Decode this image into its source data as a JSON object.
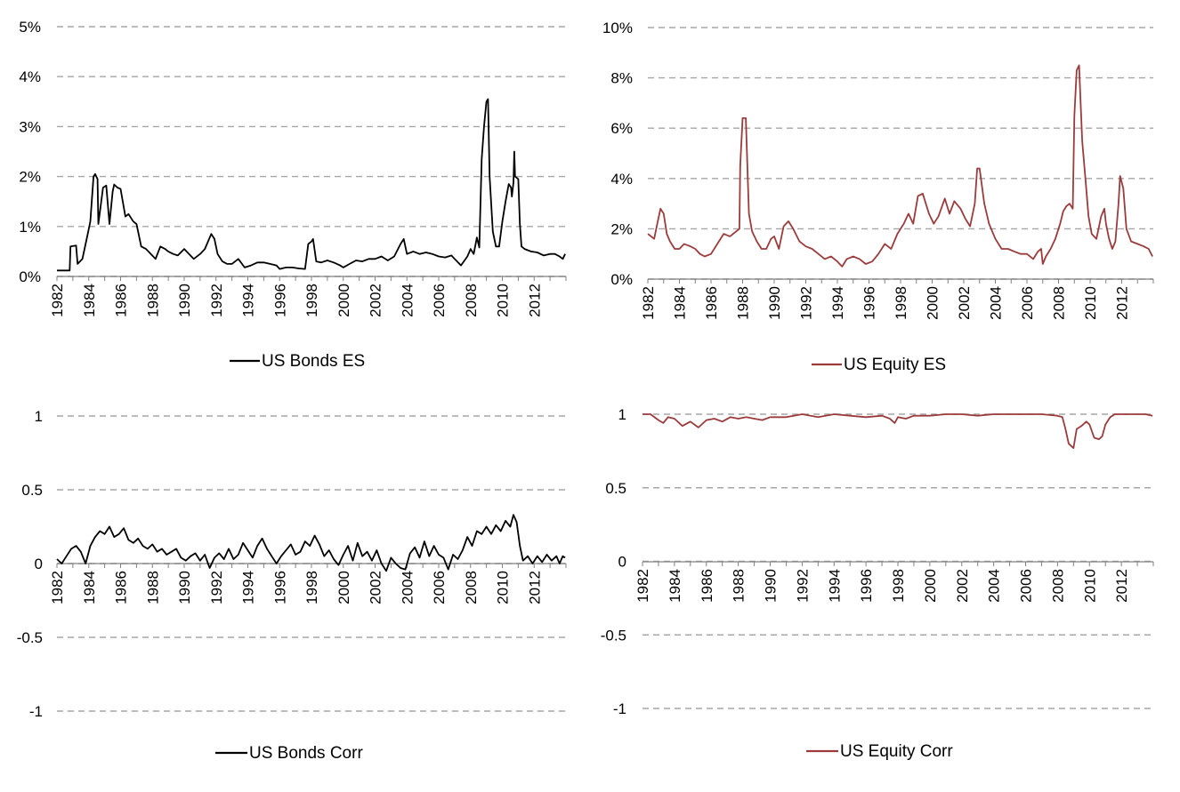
{
  "chart_data": [
    {
      "id": "bonds-es",
      "type": "line",
      "legend": "US Bonds ES",
      "color": "#000000",
      "ylim": [
        0,
        0.05
      ],
      "y_ticks": [
        0,
        0.01,
        0.02,
        0.03,
        0.04,
        0.05
      ],
      "y_tick_labels": [
        "0%",
        "1%",
        "2%",
        "3%",
        "4%",
        "5%"
      ],
      "xlim": [
        1982,
        2014
      ],
      "x_ticks": [
        1982,
        1984,
        1986,
        1988,
        1990,
        1992,
        1994,
        1996,
        1998,
        2000,
        2002,
        2004,
        2006,
        2008,
        2010,
        2012
      ],
      "x_tick_labels": [
        "1982",
        "1984",
        "1986",
        "1988",
        "1990",
        "1992",
        "1994",
        "1996",
        "1998",
        "2000",
        "2002",
        "2004",
        "2006",
        "2008",
        "2010",
        "2012"
      ],
      "grid": true,
      "series": [
        {
          "name": "US Bonds ES",
          "x": [
            1982.0,
            1982.8,
            1982.85,
            1983.2,
            1983.3,
            1983.6,
            1983.9,
            1984.1,
            1984.3,
            1984.4,
            1984.55,
            1984.6,
            1984.9,
            1985.1,
            1985.3,
            1985.5,
            1985.6,
            1985.8,
            1986.0,
            1986.3,
            1986.5,
            1986.8,
            1987.0,
            1987.3,
            1987.6,
            1987.9,
            1988.2,
            1988.5,
            1988.8,
            1989.0,
            1989.3,
            1989.6,
            1990.0,
            1990.3,
            1990.6,
            1991.0,
            1991.3,
            1991.7,
            1991.9,
            1992.1,
            1992.4,
            1992.7,
            1993.0,
            1993.4,
            1993.8,
            1994.2,
            1994.6,
            1995.0,
            1995.4,
            1995.8,
            1996.0,
            1996.4,
            1996.8,
            1997.2,
            1997.6,
            1997.8,
            1998.0,
            1998.1,
            1998.3,
            1998.6,
            1999.0,
            1999.4,
            1999.8,
            2000.0,
            2000.4,
            2000.8,
            2001.2,
            2001.6,
            2002.0,
            2002.4,
            2002.8,
            2003.2,
            2003.6,
            2003.8,
            2004.0,
            2004.4,
            2004.8,
            2005.2,
            2005.6,
            2006.0,
            2006.4,
            2006.8,
            2007.0,
            2007.4,
            2007.8,
            2008.0,
            2008.2,
            2008.4,
            2008.55,
            2008.7,
            2008.85,
            2009.0,
            2009.1,
            2009.2,
            2009.4,
            2009.6,
            2009.8,
            2010.0,
            2010.2,
            2010.4,
            2010.55,
            2010.6,
            2010.7,
            2010.75,
            2010.8,
            2011.0,
            2011.1,
            2011.2,
            2011.4,
            2011.8,
            2012.2,
            2012.6,
            2013.0,
            2013.3,
            2013.6,
            2013.8,
            2013.95
          ],
          "y": [
            0.0012,
            0.0012,
            0.006,
            0.0062,
            0.0025,
            0.0035,
            0.008,
            0.011,
            0.02,
            0.0205,
            0.0195,
            0.0105,
            0.0178,
            0.0182,
            0.0105,
            0.017,
            0.0184,
            0.0178,
            0.0175,
            0.012,
            0.0125,
            0.011,
            0.0105,
            0.006,
            0.0055,
            0.0045,
            0.0035,
            0.006,
            0.0055,
            0.005,
            0.0045,
            0.0042,
            0.0055,
            0.0045,
            0.0035,
            0.0045,
            0.0055,
            0.0085,
            0.0075,
            0.0045,
            0.003,
            0.0025,
            0.0025,
            0.0035,
            0.0018,
            0.0022,
            0.0028,
            0.0028,
            0.0025,
            0.0022,
            0.0015,
            0.0018,
            0.0018,
            0.0016,
            0.0015,
            0.0065,
            0.007,
            0.0075,
            0.003,
            0.0028,
            0.0032,
            0.0028,
            0.0022,
            0.0018,
            0.0025,
            0.0032,
            0.003,
            0.0035,
            0.0035,
            0.004,
            0.0032,
            0.004,
            0.0065,
            0.0075,
            0.0045,
            0.005,
            0.0045,
            0.0048,
            0.0045,
            0.004,
            0.0038,
            0.0042,
            0.0035,
            0.0022,
            0.004,
            0.0055,
            0.0045,
            0.0078,
            0.0058,
            0.0235,
            0.03,
            0.035,
            0.0355,
            0.02,
            0.009,
            0.006,
            0.006,
            0.011,
            0.015,
            0.0185,
            0.0178,
            0.016,
            0.0188,
            0.025,
            0.02,
            0.0195,
            0.0105,
            0.006,
            0.0055,
            0.005,
            0.0048,
            0.0042,
            0.0045,
            0.0045,
            0.004,
            0.0035,
            0.0045
          ]
        }
      ]
    },
    {
      "id": "equity-es",
      "type": "line",
      "legend": "US Equity ES",
      "color": "#9b3b3b",
      "ylim": [
        0,
        0.1
      ],
      "y_ticks": [
        0,
        0.02,
        0.04,
        0.06,
        0.08,
        0.1
      ],
      "y_tick_labels": [
        "0%",
        "2%",
        "4%",
        "6%",
        "8%",
        "10%"
      ],
      "xlim": [
        1982,
        2014
      ],
      "x_ticks": [
        1982,
        1984,
        1986,
        1988,
        1990,
        1992,
        1994,
        1996,
        1998,
        2000,
        2002,
        2004,
        2006,
        2008,
        2010,
        2012
      ],
      "x_tick_labels": [
        "1982",
        "1984",
        "1986",
        "1988",
        "1990",
        "1992",
        "1994",
        "1996",
        "1998",
        "2000",
        "2002",
        "2004",
        "2006",
        "2008",
        "2010",
        "2012"
      ],
      "grid": true,
      "series": [
        {
          "name": "US Equity ES",
          "x": [
            1982.0,
            1982.4,
            1982.6,
            1982.8,
            1983.0,
            1983.2,
            1983.4,
            1983.7,
            1984.0,
            1984.3,
            1984.7,
            1985.0,
            1985.3,
            1985.6,
            1986.0,
            1986.4,
            1986.8,
            1987.2,
            1987.6,
            1987.8,
            1987.85,
            1988.0,
            1988.2,
            1988.4,
            1988.6,
            1988.9,
            1989.2,
            1989.5,
            1989.8,
            1990.0,
            1990.3,
            1990.6,
            1990.9,
            1991.2,
            1991.6,
            1992.0,
            1992.4,
            1992.8,
            1993.2,
            1993.6,
            1994.0,
            1994.3,
            1994.6,
            1995.0,
            1995.4,
            1995.8,
            1996.2,
            1996.6,
            1997.0,
            1997.4,
            1997.8,
            1998.2,
            1998.5,
            1998.8,
            1999.1,
            1999.4,
            1999.8,
            2000.1,
            2000.4,
            2000.8,
            2001.1,
            2001.4,
            2001.8,
            2002.1,
            2002.4,
            2002.7,
            2002.85,
            2003.0,
            2003.3,
            2003.6,
            2004.0,
            2004.4,
            2004.8,
            2005.2,
            2005.6,
            2006.0,
            2006.4,
            2006.7,
            2006.9,
            2007.0,
            2007.2,
            2007.5,
            2007.8,
            2008.1,
            2008.3,
            2008.5,
            2008.7,
            2008.9,
            2009.0,
            2009.15,
            2009.3,
            2009.5,
            2009.7,
            2009.9,
            2010.1,
            2010.4,
            2010.7,
            2010.9,
            2011.0,
            2011.2,
            2011.4,
            2011.6,
            2011.8,
            2011.9,
            2012.1,
            2012.3,
            2012.6,
            2013.0,
            2013.4,
            2013.7,
            2013.95
          ],
          "y": [
            0.018,
            0.016,
            0.022,
            0.028,
            0.026,
            0.018,
            0.015,
            0.012,
            0.012,
            0.014,
            0.013,
            0.012,
            0.01,
            0.009,
            0.01,
            0.014,
            0.018,
            0.017,
            0.019,
            0.02,
            0.045,
            0.064,
            0.064,
            0.026,
            0.019,
            0.015,
            0.012,
            0.012,
            0.016,
            0.017,
            0.012,
            0.021,
            0.023,
            0.02,
            0.015,
            0.013,
            0.012,
            0.01,
            0.008,
            0.009,
            0.007,
            0.005,
            0.008,
            0.009,
            0.008,
            0.006,
            0.007,
            0.01,
            0.014,
            0.012,
            0.018,
            0.022,
            0.026,
            0.022,
            0.033,
            0.034,
            0.026,
            0.022,
            0.025,
            0.032,
            0.026,
            0.031,
            0.028,
            0.024,
            0.021,
            0.03,
            0.044,
            0.044,
            0.03,
            0.022,
            0.016,
            0.012,
            0.012,
            0.011,
            0.01,
            0.01,
            0.008,
            0.011,
            0.012,
            0.006,
            0.009,
            0.012,
            0.016,
            0.022,
            0.027,
            0.029,
            0.03,
            0.028,
            0.065,
            0.083,
            0.085,
            0.055,
            0.04,
            0.025,
            0.018,
            0.016,
            0.025,
            0.028,
            0.022,
            0.016,
            0.012,
            0.015,
            0.03,
            0.041,
            0.036,
            0.02,
            0.015,
            0.014,
            0.013,
            0.012,
            0.009
          ]
        }
      ]
    },
    {
      "id": "bonds-corr",
      "type": "line",
      "legend": "US Bonds Corr",
      "color": "#000000",
      "ylim": [
        -1,
        1
      ],
      "y_ticks": [
        -1,
        -0.5,
        0,
        0.5,
        1
      ],
      "y_tick_labels": [
        "-1",
        "-0.5",
        "0",
        "0.5",
        "1"
      ],
      "xlim": [
        1982,
        2014
      ],
      "x_ticks": [
        1982,
        1984,
        1986,
        1988,
        1990,
        1992,
        1994,
        1996,
        1998,
        2000,
        2002,
        2004,
        2006,
        2008,
        2010,
        2012
      ],
      "x_tick_labels": [
        "1982",
        "1984",
        "1986",
        "1988",
        "1990",
        "1992",
        "1994",
        "1996",
        "1998",
        "2000",
        "2002",
        "2004",
        "2006",
        "2008",
        "2010",
        "2012"
      ],
      "grid": true,
      "series": [
        {
          "name": "US Bonds Corr",
          "x": [
            1982.0,
            1982.3,
            1982.6,
            1982.9,
            1983.2,
            1983.5,
            1983.8,
            1984.1,
            1984.4,
            1984.7,
            1985.0,
            1985.3,
            1985.6,
            1985.9,
            1986.2,
            1986.5,
            1986.8,
            1987.1,
            1987.4,
            1987.7,
            1988.0,
            1988.3,
            1988.6,
            1988.9,
            1989.2,
            1989.5,
            1989.8,
            1990.1,
            1990.4,
            1990.7,
            1991.0,
            1991.3,
            1991.6,
            1991.9,
            1992.2,
            1992.5,
            1992.8,
            1993.1,
            1993.4,
            1993.7,
            1994.0,
            1994.3,
            1994.6,
            1994.9,
            1995.2,
            1995.5,
            1995.8,
            1996.1,
            1996.4,
            1996.7,
            1997.0,
            1997.3,
            1997.6,
            1997.9,
            1998.2,
            1998.5,
            1998.8,
            1999.1,
            1999.4,
            1999.7,
            2000.0,
            2000.3,
            2000.6,
            2000.9,
            2001.2,
            2001.5,
            2001.8,
            2002.1,
            2002.4,
            2002.7,
            2003.0,
            2003.3,
            2003.6,
            2003.9,
            2004.2,
            2004.5,
            2004.8,
            2005.1,
            2005.4,
            2005.7,
            2006.0,
            2006.3,
            2006.6,
            2006.9,
            2007.2,
            2007.5,
            2007.8,
            2008.1,
            2008.4,
            2008.7,
            2009.0,
            2009.3,
            2009.6,
            2009.9,
            2010.2,
            2010.5,
            2010.7,
            2010.9,
            2011.1,
            2011.3,
            2011.6,
            2011.9,
            2012.2,
            2012.5,
            2012.8,
            2013.1,
            2013.4,
            2013.6,
            2013.8,
            2013.95
          ],
          "y": [
            0.03,
            0.0,
            0.05,
            0.1,
            0.12,
            0.08,
            0.0,
            0.12,
            0.18,
            0.22,
            0.2,
            0.25,
            0.18,
            0.2,
            0.24,
            0.16,
            0.14,
            0.17,
            0.12,
            0.1,
            0.13,
            0.08,
            0.1,
            0.06,
            0.08,
            0.1,
            0.04,
            0.02,
            0.05,
            0.07,
            0.02,
            0.06,
            -0.03,
            0.04,
            0.07,
            0.03,
            0.1,
            0.03,
            0.06,
            0.14,
            0.09,
            0.04,
            0.12,
            0.17,
            0.1,
            0.05,
            0.0,
            0.05,
            0.09,
            0.13,
            0.06,
            0.08,
            0.15,
            0.12,
            0.19,
            0.13,
            0.05,
            0.09,
            0.03,
            -0.01,
            0.06,
            0.12,
            0.02,
            0.14,
            0.05,
            0.08,
            0.02,
            0.09,
            0.0,
            -0.05,
            0.04,
            0.0,
            -0.03,
            -0.04,
            0.07,
            0.11,
            0.04,
            0.15,
            0.05,
            0.12,
            0.06,
            0.04,
            -0.04,
            0.06,
            0.03,
            0.09,
            0.18,
            0.12,
            0.22,
            0.2,
            0.25,
            0.2,
            0.26,
            0.22,
            0.29,
            0.25,
            0.33,
            0.28,
            0.12,
            0.02,
            0.05,
            0.0,
            0.05,
            0.01,
            0.06,
            0.02,
            0.05,
            0.0,
            0.05,
            0.04
          ]
        }
      ]
    },
    {
      "id": "equity-corr",
      "type": "line",
      "legend": "US Equity Corr",
      "color": "#9b3b3b",
      "ylim": [
        -1,
        1
      ],
      "y_ticks": [
        -1,
        -0.5,
        0,
        0.5,
        1
      ],
      "y_tick_labels": [
        "-1",
        "-0.5",
        "0",
        "0.5",
        "1"
      ],
      "xlim": [
        1982,
        2014
      ],
      "x_ticks": [
        1982,
        1984,
        1986,
        1988,
        1990,
        1992,
        1994,
        1996,
        1998,
        2000,
        2002,
        2004,
        2006,
        2008,
        2010,
        2012
      ],
      "x_tick_labels": [
        "1982",
        "1984",
        "1986",
        "1988",
        "1990",
        "1992",
        "1994",
        "1996",
        "1998",
        "2000",
        "2002",
        "2004",
        "2006",
        "2008",
        "2010",
        "2012"
      ],
      "grid": true,
      "series": [
        {
          "name": "US Equity Corr",
          "x": [
            1982.0,
            1982.5,
            1983.0,
            1983.3,
            1983.6,
            1984.0,
            1984.5,
            1985.0,
            1985.5,
            1986.0,
            1986.5,
            1987.0,
            1987.5,
            1988.0,
            1988.5,
            1989.0,
            1989.5,
            1990.0,
            1991.0,
            1992.0,
            1993.0,
            1994.0,
            1995.0,
            1996.0,
            1997.0,
            1997.5,
            1997.8,
            1998.0,
            1998.5,
            1999.0,
            2000.0,
            2001.0,
            2002.0,
            2003.0,
            2004.0,
            2005.0,
            2006.0,
            2007.0,
            2008.0,
            2008.3,
            2008.5,
            2008.7,
            2008.9,
            2009.0,
            2009.2,
            2009.5,
            2009.8,
            2010.0,
            2010.3,
            2010.6,
            2010.8,
            2011.0,
            2011.3,
            2011.6,
            2012.0,
            2012.5,
            2013.0,
            2013.5,
            2013.95
          ],
          "y": [
            1.0,
            1.0,
            0.96,
            0.94,
            0.98,
            0.97,
            0.92,
            0.95,
            0.91,
            0.96,
            0.97,
            0.95,
            0.98,
            0.97,
            0.98,
            0.97,
            0.96,
            0.98,
            0.98,
            1.0,
            0.98,
            1.0,
            0.99,
            0.98,
            0.99,
            0.97,
            0.94,
            0.98,
            0.97,
            0.99,
            0.99,
            1.0,
            1.0,
            0.99,
            1.0,
            1.0,
            1.0,
            1.0,
            0.99,
            0.98,
            0.9,
            0.8,
            0.78,
            0.77,
            0.9,
            0.92,
            0.95,
            0.93,
            0.84,
            0.83,
            0.85,
            0.93,
            0.98,
            1.0,
            1.0,
            1.0,
            1.0,
            1.0,
            0.99
          ]
        }
      ]
    }
  ]
}
